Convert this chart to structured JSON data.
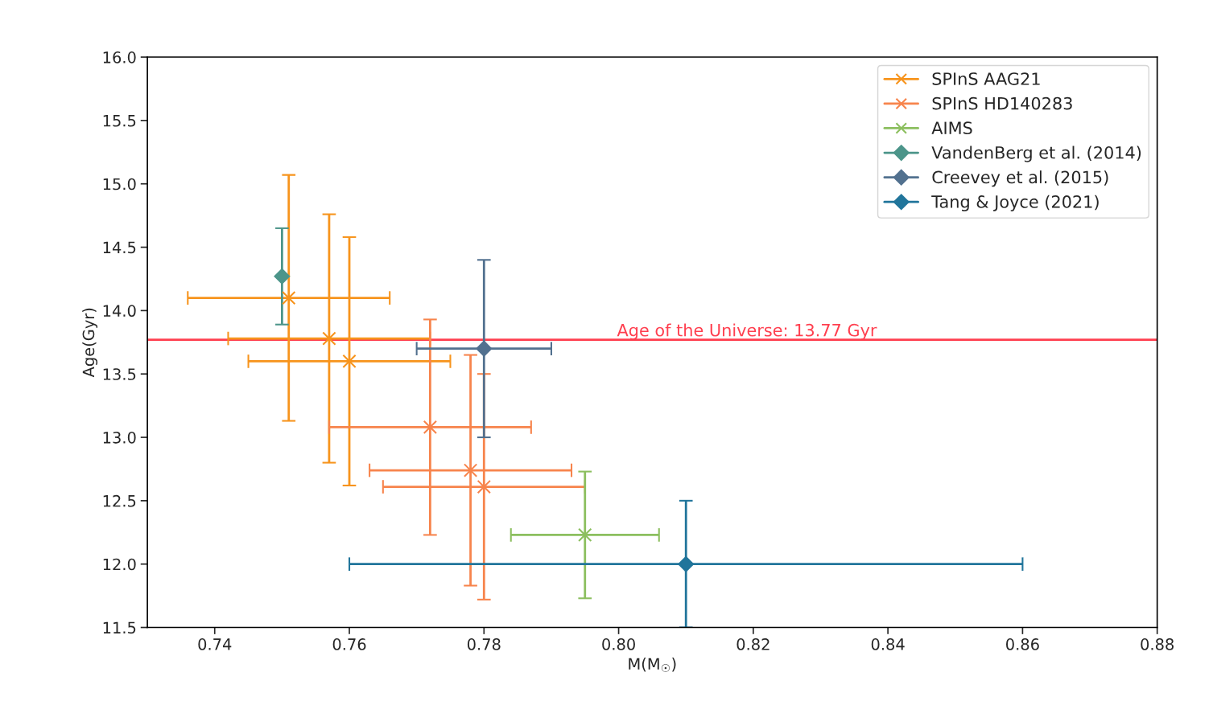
{
  "chart_data": {
    "type": "scatter",
    "xlabel": "M(M$_{☉}$)",
    "ylabel": "Age(Gyr)",
    "xlim": [
      0.73,
      0.88
    ],
    "xticks": [
      0.74,
      0.76,
      0.78,
      {
        "value": 0.8,
        "label": "0.80"
      },
      0.82,
      0.84,
      0.86,
      0.88
    ],
    "ylim": [
      11.5,
      16
    ],
    "yticks": [
      11.5,
      {
        "value": 12,
        "label": "12.0"
      },
      12.5,
      {
        "value": 13,
        "label": "13.0"
      },
      13.5,
      {
        "value": 14,
        "label": "14.0"
      },
      14.5,
      {
        "value": 15,
        "label": "15.0"
      },
      15.5,
      {
        "value": 16,
        "label": "16.0"
      }
    ],
    "legend": "top right",
    "grid": false,
    "ref_lines": [
      {
        "axis": "y",
        "value": 13.77,
        "label": "Age of the Universe: 13.77 Gyr",
        "color": "#ff3f4f"
      }
    ],
    "series": [
      {
        "name": "SPInS AAG21",
        "color": "#f7941d",
        "marker": "cross",
        "x": [
          0.751,
          0.757,
          0.76
        ],
        "values": [
          14.1,
          13.78,
          13.6
        ],
        "errors": [
          0.97,
          0.98,
          0.98
        ],
        "xerrors": [
          0.015,
          0.015,
          0.015
        ]
      },
      {
        "name": "SPInS HD140283",
        "color": "#f7844c",
        "marker": "cross",
        "x": [
          0.772,
          0.778,
          0.78
        ],
        "values": [
          13.08,
          12.74,
          12.61
        ],
        "errors": [
          0.85,
          0.91,
          0.89
        ],
        "xerrors": [
          0.015,
          0.015,
          0.015
        ]
      },
      {
        "name": "AIMS",
        "color": "#8cbf5f",
        "marker": "cross",
        "x": [
          0.795
        ],
        "values": [
          12.23
        ],
        "errors": [
          0.5
        ],
        "xerrors": [
          0.011
        ]
      },
      {
        "name": "VandenBerg et al. (2014)",
        "color": "#4c958a",
        "marker": "diamond",
        "x": [
          0.75
        ],
        "values": [
          14.27
        ],
        "errors": [
          0.38
        ]
      },
      {
        "name": "Creevey et al. (2015)",
        "color": "#52718f",
        "marker": "diamond",
        "x": [
          0.78
        ],
        "values": [
          13.7
        ],
        "errors": [
          0.7
        ],
        "xerrors": [
          0.01
        ]
      },
      {
        "name": "Tang & Joyce (2021)",
        "color": "#21759b",
        "marker": "diamond",
        "x": [
          0.81
        ],
        "values": [
          12.0
        ],
        "errors": [
          0.5
        ],
        "xerrors": [
          0.05
        ]
      }
    ]
  }
}
